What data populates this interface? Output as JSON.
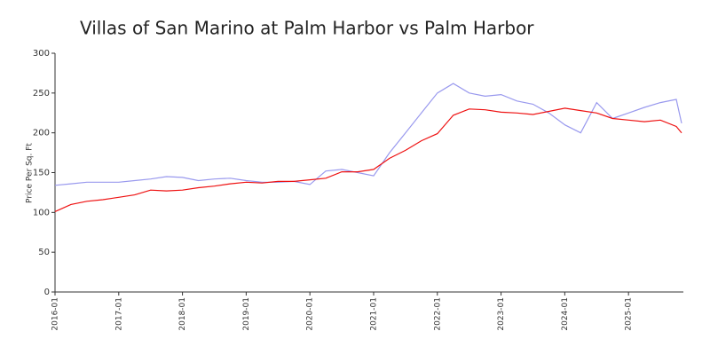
{
  "chart_data": {
    "type": "line",
    "title": "Villas of San Marino at Palm Harbor vs Palm Harbor",
    "y_label": "Price Per Sq. Ft",
    "x": [
      "2016-01",
      "2016-04",
      "2016-07",
      "2016-10",
      "2017-01",
      "2017-04",
      "2017-07",
      "2017-10",
      "2018-01",
      "2018-04",
      "2018-07",
      "2018-10",
      "2019-01",
      "2019-04",
      "2019-07",
      "2019-10",
      "2020-01",
      "2020-04",
      "2020-07",
      "2020-10",
      "2021-01",
      "2021-04",
      "2021-07",
      "2021-10",
      "2022-01",
      "2022-04",
      "2022-07",
      "2022-10",
      "2023-01",
      "2023-04",
      "2023-07",
      "2023-10",
      "2024-01",
      "2024-04",
      "2024-07",
      "2024-10",
      "2025-01",
      "2025-04",
      "2025-07",
      "2025-10",
      "2025-11"
    ],
    "series": [
      {
        "color": "#9999ee",
        "values": [
          134,
          136,
          138,
          138,
          138,
          140,
          142,
          145,
          144,
          140,
          142,
          143,
          140,
          138,
          138,
          139,
          135,
          152,
          154,
          150,
          146,
          175,
          200,
          225,
          250,
          262,
          250,
          246,
          248,
          240,
          236,
          225,
          210,
          200,
          238,
          218,
          225,
          232,
          238,
          242,
          212
        ]
      },
      {
        "color": "#ee1111",
        "values": [
          101,
          110,
          114,
          116,
          119,
          122,
          128,
          127,
          128,
          131,
          133,
          136,
          138,
          137,
          139,
          139,
          141,
          143,
          151,
          151,
          154,
          168,
          178,
          190,
          199,
          222,
          230,
          229,
          226,
          225,
          223,
          227,
          231,
          228,
          225,
          218,
          216,
          214,
          216,
          208,
          200
        ]
      }
    ],
    "xlim": [
      "2016-01",
      "2025-11"
    ],
    "xticks": [
      "2016-01",
      "2017-01",
      "2018-01",
      "2019-01",
      "2020-01",
      "2021-01",
      "2022-01",
      "2023-01",
      "2024-01",
      "2025-01"
    ],
    "ylim": [
      0,
      300
    ],
    "yticks": [
      0,
      50,
      100,
      150,
      200,
      250,
      300
    ]
  }
}
